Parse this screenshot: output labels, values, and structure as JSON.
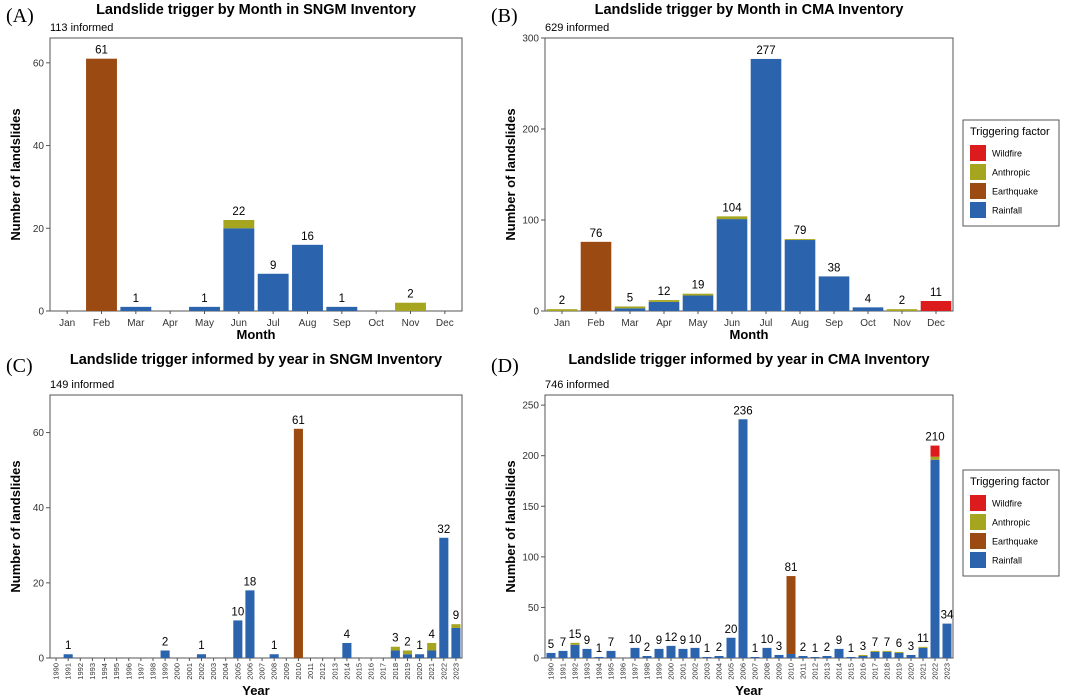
{
  "colors": {
    "Wildfire": "#dc1c1c",
    "Anthropic": "#a5a520",
    "Earthquake": "#9b4a12",
    "Rainfall": "#2b63ad"
  },
  "legend": {
    "title": "Triggering factor",
    "items": [
      "Wildfire",
      "Anthropic",
      "Earthquake",
      "Rainfall"
    ]
  },
  "chart_data": [
    {
      "type": "bar",
      "stacked": true,
      "panel": "(A)",
      "title": "Landslide trigger by Month in SNGM Inventory",
      "subtitle": "113 informed",
      "xlabel": "Month",
      "ylabel": "Number of landslides",
      "ylim": [
        0,
        66
      ],
      "yticks": [
        0,
        20,
        40,
        60
      ],
      "categories": [
        "Jan",
        "Feb",
        "Mar",
        "Apr",
        "May",
        "Jun",
        "Jul",
        "Aug",
        "Sep",
        "Oct",
        "Nov",
        "Dec"
      ],
      "series": [
        {
          "name": "Rainfall",
          "values": [
            0,
            0,
            1,
            0,
            1,
            20,
            9,
            16,
            1,
            0,
            0,
            0
          ]
        },
        {
          "name": "Earthquake",
          "values": [
            0,
            61,
            0,
            0,
            0,
            0,
            0,
            0,
            0,
            0,
            0,
            0
          ]
        },
        {
          "name": "Anthropic",
          "values": [
            0,
            0,
            0,
            0,
            0,
            2,
            0,
            0,
            0,
            0,
            2,
            0
          ]
        },
        {
          "name": "Wildfire",
          "values": [
            0,
            0,
            0,
            0,
            0,
            0,
            0,
            0,
            0,
            0,
            0,
            0
          ]
        }
      ],
      "totals": [
        null,
        61,
        1,
        null,
        1,
        22,
        9,
        16,
        1,
        null,
        2,
        null
      ],
      "legend": false
    },
    {
      "type": "bar",
      "stacked": true,
      "panel": "(B)",
      "title": "Landslide trigger by Month in CMA Inventory",
      "subtitle": "629 informed",
      "xlabel": "Month",
      "ylabel": "Number of landslides",
      "ylim": [
        0,
        300
      ],
      "yticks": [
        0,
        100,
        200,
        300
      ],
      "categories": [
        "Jan",
        "Feb",
        "Mar",
        "Apr",
        "May",
        "Jun",
        "Jul",
        "Aug",
        "Sep",
        "Oct",
        "Nov",
        "Dec"
      ],
      "series": [
        {
          "name": "Rainfall",
          "values": [
            0,
            0,
            3,
            10,
            17,
            101,
            277,
            78,
            38,
            4,
            0,
            0
          ]
        },
        {
          "name": "Earthquake",
          "values": [
            0,
            76,
            0,
            0,
            0,
            0,
            0,
            0,
            0,
            0,
            0,
            0
          ]
        },
        {
          "name": "Anthropic",
          "values": [
            2,
            0,
            2,
            2,
            2,
            3,
            0,
            1,
            0,
            0,
            2,
            0
          ]
        },
        {
          "name": "Wildfire",
          "values": [
            0,
            0,
            0,
            0,
            0,
            0,
            0,
            0,
            0,
            0,
            0,
            11
          ]
        }
      ],
      "totals": [
        2,
        76,
        5,
        12,
        19,
        104,
        277,
        79,
        38,
        4,
        2,
        11
      ],
      "legend": true
    },
    {
      "type": "bar",
      "stacked": true,
      "panel": "(C)",
      "title": "Landslide trigger informed by year in SNGM Inventory",
      "subtitle": "149 informed",
      "xlabel": "Year",
      "ylabel": "Number of landslides",
      "ylim": [
        0,
        70
      ],
      "yticks": [
        0,
        20,
        40,
        60
      ],
      "categories": [
        "1990",
        "1991",
        "1992",
        "1993",
        "1994",
        "1995",
        "1996",
        "1997",
        "1998",
        "1999",
        "2000",
        "2001",
        "2002",
        "2003",
        "2004",
        "2005",
        "2006",
        "2007",
        "2008",
        "2009",
        "2010",
        "2011",
        "2012",
        "2013",
        "2014",
        "2015",
        "2016",
        "2017",
        "2018",
        "2019",
        "2020",
        "2021",
        "2022",
        "2023"
      ],
      "series": [
        {
          "name": "Rainfall",
          "values": [
            0,
            1,
            0,
            0,
            0,
            0,
            0,
            0,
            0,
            2,
            0,
            0,
            1,
            0,
            0,
            10,
            18,
            0,
            1,
            0,
            0,
            0,
            0,
            0,
            4,
            0,
            0,
            0,
            2,
            1,
            1,
            2,
            32,
            8
          ]
        },
        {
          "name": "Earthquake",
          "values": [
            0,
            0,
            0,
            0,
            0,
            0,
            0,
            0,
            0,
            0,
            0,
            0,
            0,
            0,
            0,
            0,
            0,
            0,
            0,
            0,
            61,
            0,
            0,
            0,
            0,
            0,
            0,
            0,
            0,
            0,
            0,
            0,
            0,
            0
          ]
        },
        {
          "name": "Anthropic",
          "values": [
            0,
            0,
            0,
            0,
            0,
            0,
            0,
            0,
            0,
            0,
            0,
            0,
            0,
            0,
            0,
            0,
            0,
            0,
            0,
            0,
            0,
            0,
            0,
            0,
            0,
            0,
            0,
            0,
            1,
            1,
            0,
            2,
            0,
            1
          ]
        },
        {
          "name": "Wildfire",
          "values": [
            0,
            0,
            0,
            0,
            0,
            0,
            0,
            0,
            0,
            0,
            0,
            0,
            0,
            0,
            0,
            0,
            0,
            0,
            0,
            0,
            0,
            0,
            0,
            0,
            0,
            0,
            0,
            0,
            0,
            0,
            0,
            0,
            0,
            0
          ]
        }
      ],
      "totals": [
        null,
        1,
        null,
        null,
        null,
        null,
        null,
        null,
        null,
        2,
        null,
        null,
        1,
        null,
        null,
        10,
        18,
        null,
        1,
        null,
        61,
        null,
        null,
        null,
        4,
        null,
        null,
        null,
        3,
        2,
        1,
        4,
        32,
        9
      ],
      "legend": false
    },
    {
      "type": "bar",
      "stacked": true,
      "panel": "(D)",
      "title": "Landslide trigger informed by year in CMA Inventory",
      "subtitle": "746 informed",
      "xlabel": "Year",
      "ylabel": "Number of landslides",
      "ylim": [
        0,
        260
      ],
      "yticks": [
        0,
        50,
        100,
        150,
        200,
        250
      ],
      "categories": [
        "1990",
        "1991",
        "1992",
        "1993",
        "1994",
        "1995",
        "1996",
        "1997",
        "1998",
        "1999",
        "2000",
        "2001",
        "2002",
        "2003",
        "2004",
        "2005",
        "2006",
        "2007",
        "2008",
        "2009",
        "2010",
        "2011",
        "2012",
        "2013",
        "2014",
        "2015",
        "2016",
        "2017",
        "2018",
        "2019",
        "2020",
        "2021",
        "2022",
        "2023"
      ],
      "series": [
        {
          "name": "Rainfall",
          "values": [
            5,
            7,
            13,
            9,
            1,
            7,
            0,
            10,
            2,
            9,
            12,
            9,
            10,
            1,
            2,
            20,
            236,
            1,
            10,
            3,
            4,
            2,
            1,
            2,
            9,
            1,
            2,
            6,
            6,
            5,
            3,
            10,
            196,
            34
          ]
        },
        {
          "name": "Earthquake",
          "values": [
            0,
            0,
            0,
            0,
            0,
            0,
            0,
            0,
            0,
            0,
            0,
            0,
            0,
            0,
            0,
            0,
            0,
            0,
            0,
            0,
            77,
            0,
            0,
            0,
            0,
            0,
            0,
            0,
            0,
            0,
            0,
            0,
            0,
            0
          ]
        },
        {
          "name": "Anthropic",
          "values": [
            0,
            0,
            2,
            0,
            0,
            0,
            0,
            0,
            0,
            0,
            0,
            0,
            0,
            0,
            0,
            0,
            0,
            0,
            0,
            0,
            0,
            0,
            0,
            0,
            0,
            0,
            1,
            1,
            1,
            1,
            0,
            1,
            3,
            0
          ]
        },
        {
          "name": "Wildfire",
          "values": [
            0,
            0,
            0,
            0,
            0,
            0,
            0,
            0,
            0,
            0,
            0,
            0,
            0,
            0,
            0,
            0,
            0,
            0,
            0,
            0,
            0,
            0,
            0,
            0,
            0,
            0,
            0,
            0,
            0,
            0,
            0,
            0,
            11,
            0
          ]
        }
      ],
      "totals": [
        5,
        7,
        15,
        9,
        1,
        7,
        null,
        10,
        2,
        9,
        12,
        9,
        10,
        1,
        2,
        20,
        236,
        1,
        10,
        3,
        81,
        2,
        1,
        2,
        9,
        1,
        3,
        7,
        7,
        6,
        3,
        11,
        210,
        34
      ],
      "legend": true
    }
  ]
}
